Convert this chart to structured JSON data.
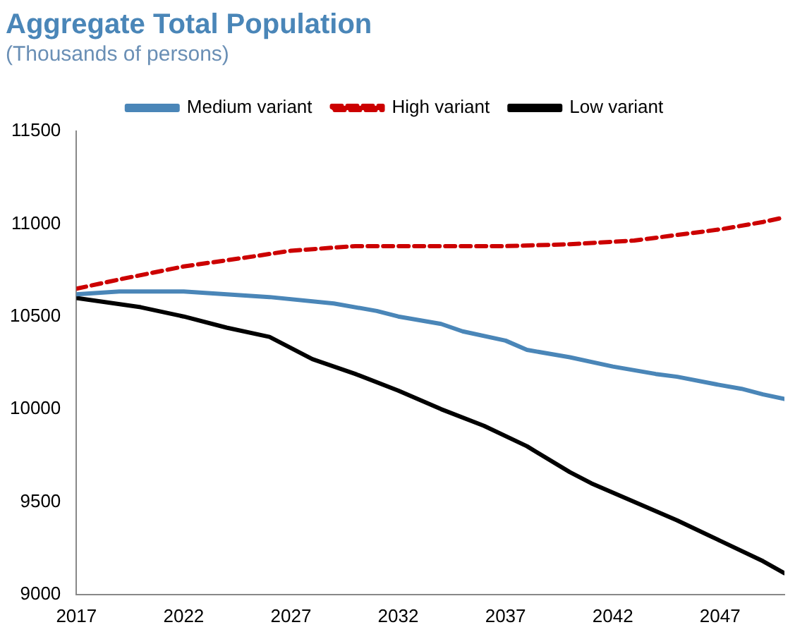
{
  "chart_data": {
    "type": "line",
    "title": "Aggregate Total Population",
    "subtitle": "(Thousands of persons)",
    "xlim": [
      2017,
      2050
    ],
    "xticks": [
      2017,
      2022,
      2027,
      2032,
      2037,
      2042,
      2047
    ],
    "ylim": [
      9000,
      11500
    ],
    "yticks": [
      9000,
      9500,
      10000,
      10500,
      11000,
      11500
    ],
    "grid": false,
    "legend": "top",
    "marker": "none",
    "series": [
      {
        "name": "Medium variant",
        "color": "#4a86b8",
        "line_style": "solid",
        "x": [
          2017,
          2019,
          2022,
          2026,
          2029,
          2031,
          2032,
          2034,
          2035,
          2037,
          2038,
          2040,
          2042,
          2044,
          2045,
          2047,
          2048,
          2049,
          2050
        ],
        "values": [
          10620,
          10635,
          10635,
          10605,
          10570,
          10530,
          10500,
          10460,
          10420,
          10370,
          10320,
          10280,
          10230,
          10190,
          10175,
          10130,
          10110,
          10080,
          10055
        ]
      },
      {
        "name": "High variant",
        "color": "#cc0000",
        "line_style": "dashed",
        "x": [
          2017,
          2019,
          2022,
          2025,
          2027,
          2030,
          2033,
          2037,
          2040,
          2043,
          2045,
          2047,
          2049,
          2050
        ],
        "values": [
          10650,
          10700,
          10770,
          10820,
          10855,
          10880,
          10880,
          10880,
          10890,
          10910,
          10940,
          10970,
          11010,
          11035
        ]
      },
      {
        "name": "Low variant",
        "color": "#000000",
        "line_style": "solid",
        "x": [
          2017,
          2020,
          2022,
          2024,
          2026,
          2027,
          2028,
          2030,
          2032,
          2034,
          2036,
          2038,
          2040,
          2041,
          2043,
          2045,
          2047,
          2049,
          2050
        ],
        "values": [
          10600,
          10550,
          10500,
          10440,
          10390,
          10330,
          10270,
          10190,
          10100,
          10000,
          9910,
          9800,
          9660,
          9600,
          9500,
          9400,
          9290,
          9180,
          9115
        ]
      }
    ]
  }
}
